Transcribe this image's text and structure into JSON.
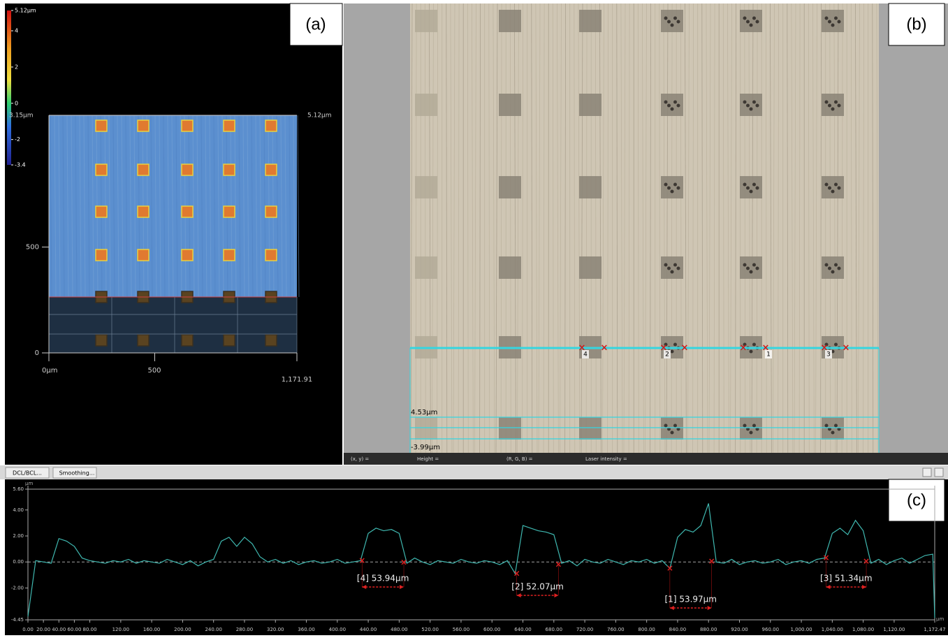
{
  "panel_a": {
    "label": "(a)",
    "colorbar": {
      "ylim": [
        -3.4,
        5.12
      ],
      "ticks": [
        {
          "value": 5.12,
          "label": "5.12µm"
        },
        4,
        2,
        0,
        -2,
        -3.4
      ]
    },
    "corner_labels": [
      "3.15µm",
      "5.12µm"
    ],
    "xlim": [
      0,
      1171.91
    ],
    "xticks": [
      {
        "value": 0,
        "label": "0µm"
      },
      500,
      {
        "value": 1171.91,
        "label": "1,171.91"
      }
    ],
    "yticks": [
      0,
      500
    ]
  },
  "panel_b": {
    "label": "(b)",
    "markers": [
      "4",
      "2",
      "1",
      "3"
    ],
    "profile_range": [
      "4.53µm",
      "-3.99µm"
    ],
    "status": [
      "(x, y) =",
      "Height =",
      "(R, G, B) =",
      "Laser intensity ="
    ]
  },
  "toolbar": {
    "buttons": [
      "DCL/BCL...",
      "Smoothing..."
    ]
  },
  "panel_c": {
    "label": "(c)",
    "chart_data": {
      "type": "line",
      "x_unit": "µm",
      "y_unit": "µm",
      "xlim": [
        0,
        1172.47
      ],
      "ylim": [
        -4.45,
        5.6
      ],
      "yticks": [
        {
          "value": 5.6,
          "label": "5.60"
        },
        {
          "value": 4,
          "label": "4.00"
        },
        {
          "value": 2,
          "label": "2.00"
        },
        {
          "value": 0,
          "label": "0.00"
        },
        {
          "value": -2,
          "label": "-2.00"
        },
        {
          "value": -4.45,
          "label": "-4.45"
        }
      ],
      "xticks": [
        {
          "value": 0,
          "label": "0.00"
        },
        {
          "value": 20,
          "label": "20.00"
        },
        {
          "value": 40,
          "label": "40.00"
        },
        {
          "value": 60,
          "label": "60.00"
        },
        {
          "value": 80,
          "label": "80.00"
        },
        {
          "value": 120,
          "label": "120.00"
        },
        {
          "value": 160,
          "label": "160.00"
        },
        {
          "value": 200,
          "label": "200.00"
        },
        {
          "value": 240,
          "label": "240.00"
        },
        {
          "value": 280,
          "label": "280.00"
        },
        {
          "value": 320,
          "label": "320.00"
        },
        {
          "value": 360,
          "label": "360.00"
        },
        {
          "value": 400,
          "label": "400.00"
        },
        {
          "value": 440,
          "label": "440.00"
        },
        {
          "value": 480,
          "label": "480.00"
        },
        {
          "value": 520,
          "label": "520.00"
        },
        {
          "value": 560,
          "label": "560.00"
        },
        {
          "value": 600,
          "label": "600.00"
        },
        {
          "value": 640,
          "label": "640.00"
        },
        {
          "value": 680,
          "label": "680.00"
        },
        {
          "value": 720,
          "label": "720.00"
        },
        {
          "value": 760,
          "label": "760.00"
        },
        {
          "value": 800,
          "label": "800.00"
        },
        {
          "value": 840,
          "label": "840.00"
        },
        {
          "value": 880,
          "label": "880.00"
        },
        {
          "value": 920,
          "label": "920.00"
        },
        {
          "value": 960,
          "label": "960.00"
        },
        {
          "value": 1000,
          "label": "1,000.00"
        },
        {
          "value": 1040,
          "label": "1,040.00"
        },
        {
          "value": 1080,
          "label": "1,080.00"
        },
        {
          "value": 1120,
          "label": "1,120.00"
        },
        {
          "value": 1172.47,
          "label": "1,172.47"
        }
      ],
      "x": [
        0,
        10,
        20,
        30,
        40,
        50,
        60,
        70,
        80,
        90,
        100,
        110,
        120,
        130,
        140,
        150,
        160,
        170,
        180,
        190,
        200,
        210,
        220,
        230,
        240,
        250,
        260,
        270,
        280,
        290,
        300,
        310,
        320,
        330,
        340,
        350,
        360,
        370,
        380,
        390,
        400,
        410,
        420,
        430,
        440,
        450,
        460,
        470,
        480,
        490,
        500,
        510,
        520,
        530,
        540,
        550,
        560,
        570,
        580,
        590,
        600,
        610,
        620,
        630,
        640,
        650,
        660,
        670,
        680,
        690,
        700,
        710,
        720,
        730,
        740,
        750,
        760,
        770,
        780,
        790,
        800,
        810,
        820,
        830,
        840,
        850,
        860,
        870,
        880,
        890,
        900,
        910,
        920,
        930,
        940,
        950,
        960,
        970,
        980,
        990,
        1000,
        1010,
        1020,
        1030,
        1040,
        1050,
        1060,
        1070,
        1080,
        1090,
        1100,
        1110,
        1120,
        1130,
        1140,
        1150,
        1160,
        1170,
        1172.47
      ],
      "series": [
        {
          "color": "#3fb8b0",
          "values": [
            -4.2,
            0.1,
            0,
            -0.1,
            1.8,
            1.6,
            1.2,
            0.3,
            0.1,
            0,
            -0.1,
            0.1,
            0,
            0.2,
            -0.1,
            0.1,
            0,
            -0.1,
            0.2,
            0,
            -0.2,
            0.1,
            -0.3,
            0,
            0.2,
            1.6,
            1.9,
            1.2,
            1.9,
            1.4,
            0.4,
            0,
            0.2,
            -0.1,
            0.1,
            -0.2,
            0,
            0.1,
            -0.1,
            0,
            0.2,
            -0.1,
            0,
            0.1,
            2.2,
            2.6,
            2.4,
            2.5,
            2.2,
            -0.1,
            0.3,
            0,
            -0.2,
            0.1,
            0,
            -0.1,
            0.2,
            0,
            -0.1,
            0.1,
            0,
            -0.2,
            0.1,
            -0.9,
            2.8,
            2.6,
            2.4,
            2.3,
            2.1,
            -0.1,
            0.1,
            -0.3,
            0.2,
            0,
            -0.1,
            0.2,
            0,
            -0.2,
            0.1,
            0,
            0.2,
            -0.1,
            0.1,
            -0.5,
            1.9,
            2.5,
            2.3,
            2.8,
            4.5,
            0,
            -0.1,
            0.2,
            -0.2,
            0,
            0.1,
            -0.1,
            0,
            0.2,
            -0.2,
            0,
            0.1,
            -0.1,
            0.2,
            0.3,
            2.2,
            2.6,
            2.1,
            3.2,
            2.4,
            -0.1,
            0.2,
            -0.2,
            0.1,
            0.3,
            -0.1,
            0.2,
            0.5,
            0.6,
            -4.3
          ]
        }
      ],
      "measurements": [
        {
          "label": "[4] 53.94µm",
          "x1": 432,
          "x2": 486,
          "y1": 0.1,
          "y2": -0.05
        },
        {
          "label": "[2] 52.07µm",
          "x1": 632,
          "x2": 686,
          "y1": -0.9,
          "y2": -0.2
        },
        {
          "label": "[1] 53.97µm",
          "x1": 830,
          "x2": 884,
          "y1": -0.5,
          "y2": 0.05
        },
        {
          "label": "[3] 51.34µm",
          "x1": 1032,
          "x2": 1084,
          "y1": 0.3,
          "y2": 0.05
        }
      ]
    }
  }
}
